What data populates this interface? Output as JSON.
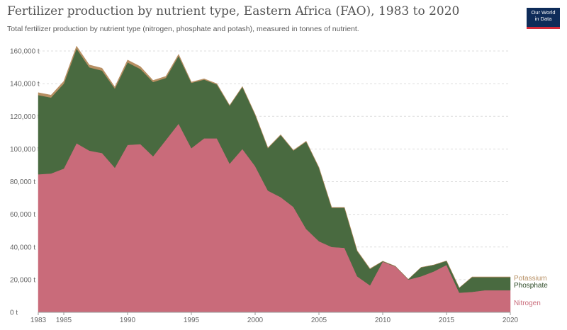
{
  "title": "Fertilizer production by nutrient type, Eastern Africa (FAO), 1983 to 2020",
  "subtitle": "Total fertilizer production by nutrient type (nitrogen, phosphate and potash), measured in tonnes of nutrient.",
  "logo": {
    "line1": "Our World",
    "line2": "in Data"
  },
  "colors": {
    "nitrogen": "#c96b7a",
    "phosphate": "#496a40",
    "potassium": "#b78f63"
  },
  "chart_data": {
    "type": "area",
    "stacked": true,
    "title": "Fertilizer production by nutrient type, Eastern Africa (FAO), 1983 to 2020",
    "ylim": [
      0,
      160000
    ],
    "y_unit": "t",
    "grid": "horizontal",
    "legend_placement": "right-inline",
    "y_ticks": [
      "0 t",
      "20,000 t",
      "40,000 t",
      "60,000 t",
      "80,000 t",
      "100,000 t",
      "120,000 t",
      "140,000 t",
      "160,000 t"
    ],
    "y_tick_values": [
      0,
      20000,
      40000,
      60000,
      80000,
      100000,
      120000,
      140000,
      160000
    ],
    "x_ticks": [
      "1983",
      "1985",
      "1990",
      "1995",
      "2000",
      "2005",
      "2010",
      "2015",
      "2020"
    ],
    "x_tick_values": [
      1983,
      1985,
      1990,
      1995,
      2000,
      2005,
      2010,
      2015,
      2020
    ],
    "x": [
      1983,
      1984,
      1985,
      1986,
      1987,
      1988,
      1989,
      1990,
      1991,
      1992,
      1993,
      1994,
      1995,
      1996,
      1997,
      1998,
      1999,
      2000,
      2001,
      2002,
      2003,
      2004,
      2005,
      2006,
      2007,
      2008,
      2009,
      2010,
      2011,
      2012,
      2013,
      2014,
      2015,
      2016,
      2017,
      2018,
      2019,
      2020
    ],
    "series": [
      {
        "name": "Nitrogen",
        "values": [
          84500,
          85000,
          88000,
          103500,
          99000,
          97500,
          88500,
          102500,
          103000,
          95500,
          105500,
          115500,
          100500,
          106500,
          106500,
          91000,
          100000,
          89500,
          74500,
          70500,
          64500,
          51000,
          43500,
          40000,
          39500,
          22000,
          16500,
          31000,
          28000,
          20000,
          22000,
          25000,
          29000,
          12000,
          12500,
          13500,
          13500,
          13500
        ]
      },
      {
        "name": "Phosphate",
        "values": [
          48500,
          46500,
          52000,
          58000,
          51000,
          50500,
          48500,
          50500,
          46000,
          45500,
          38000,
          41500,
          40000,
          36000,
          33000,
          35500,
          38000,
          31500,
          26000,
          38000,
          34500,
          53500,
          45000,
          24000,
          24500,
          15500,
          10000,
          300,
          200,
          200,
          5500,
          4000,
          2500,
          3000,
          9000,
          8000,
          8000,
          8000
        ]
      },
      {
        "name": "Potassium",
        "values": [
          1500,
          1500,
          1500,
          1500,
          1500,
          1500,
          1000,
          1500,
          1500,
          1000,
          1000,
          1000,
          500,
          500,
          500,
          300,
          300,
          300,
          300,
          300,
          300,
          300,
          300,
          300,
          300,
          300,
          300,
          0,
          0,
          0,
          0,
          0,
          0,
          0,
          200,
          200,
          200,
          200
        ]
      }
    ]
  }
}
